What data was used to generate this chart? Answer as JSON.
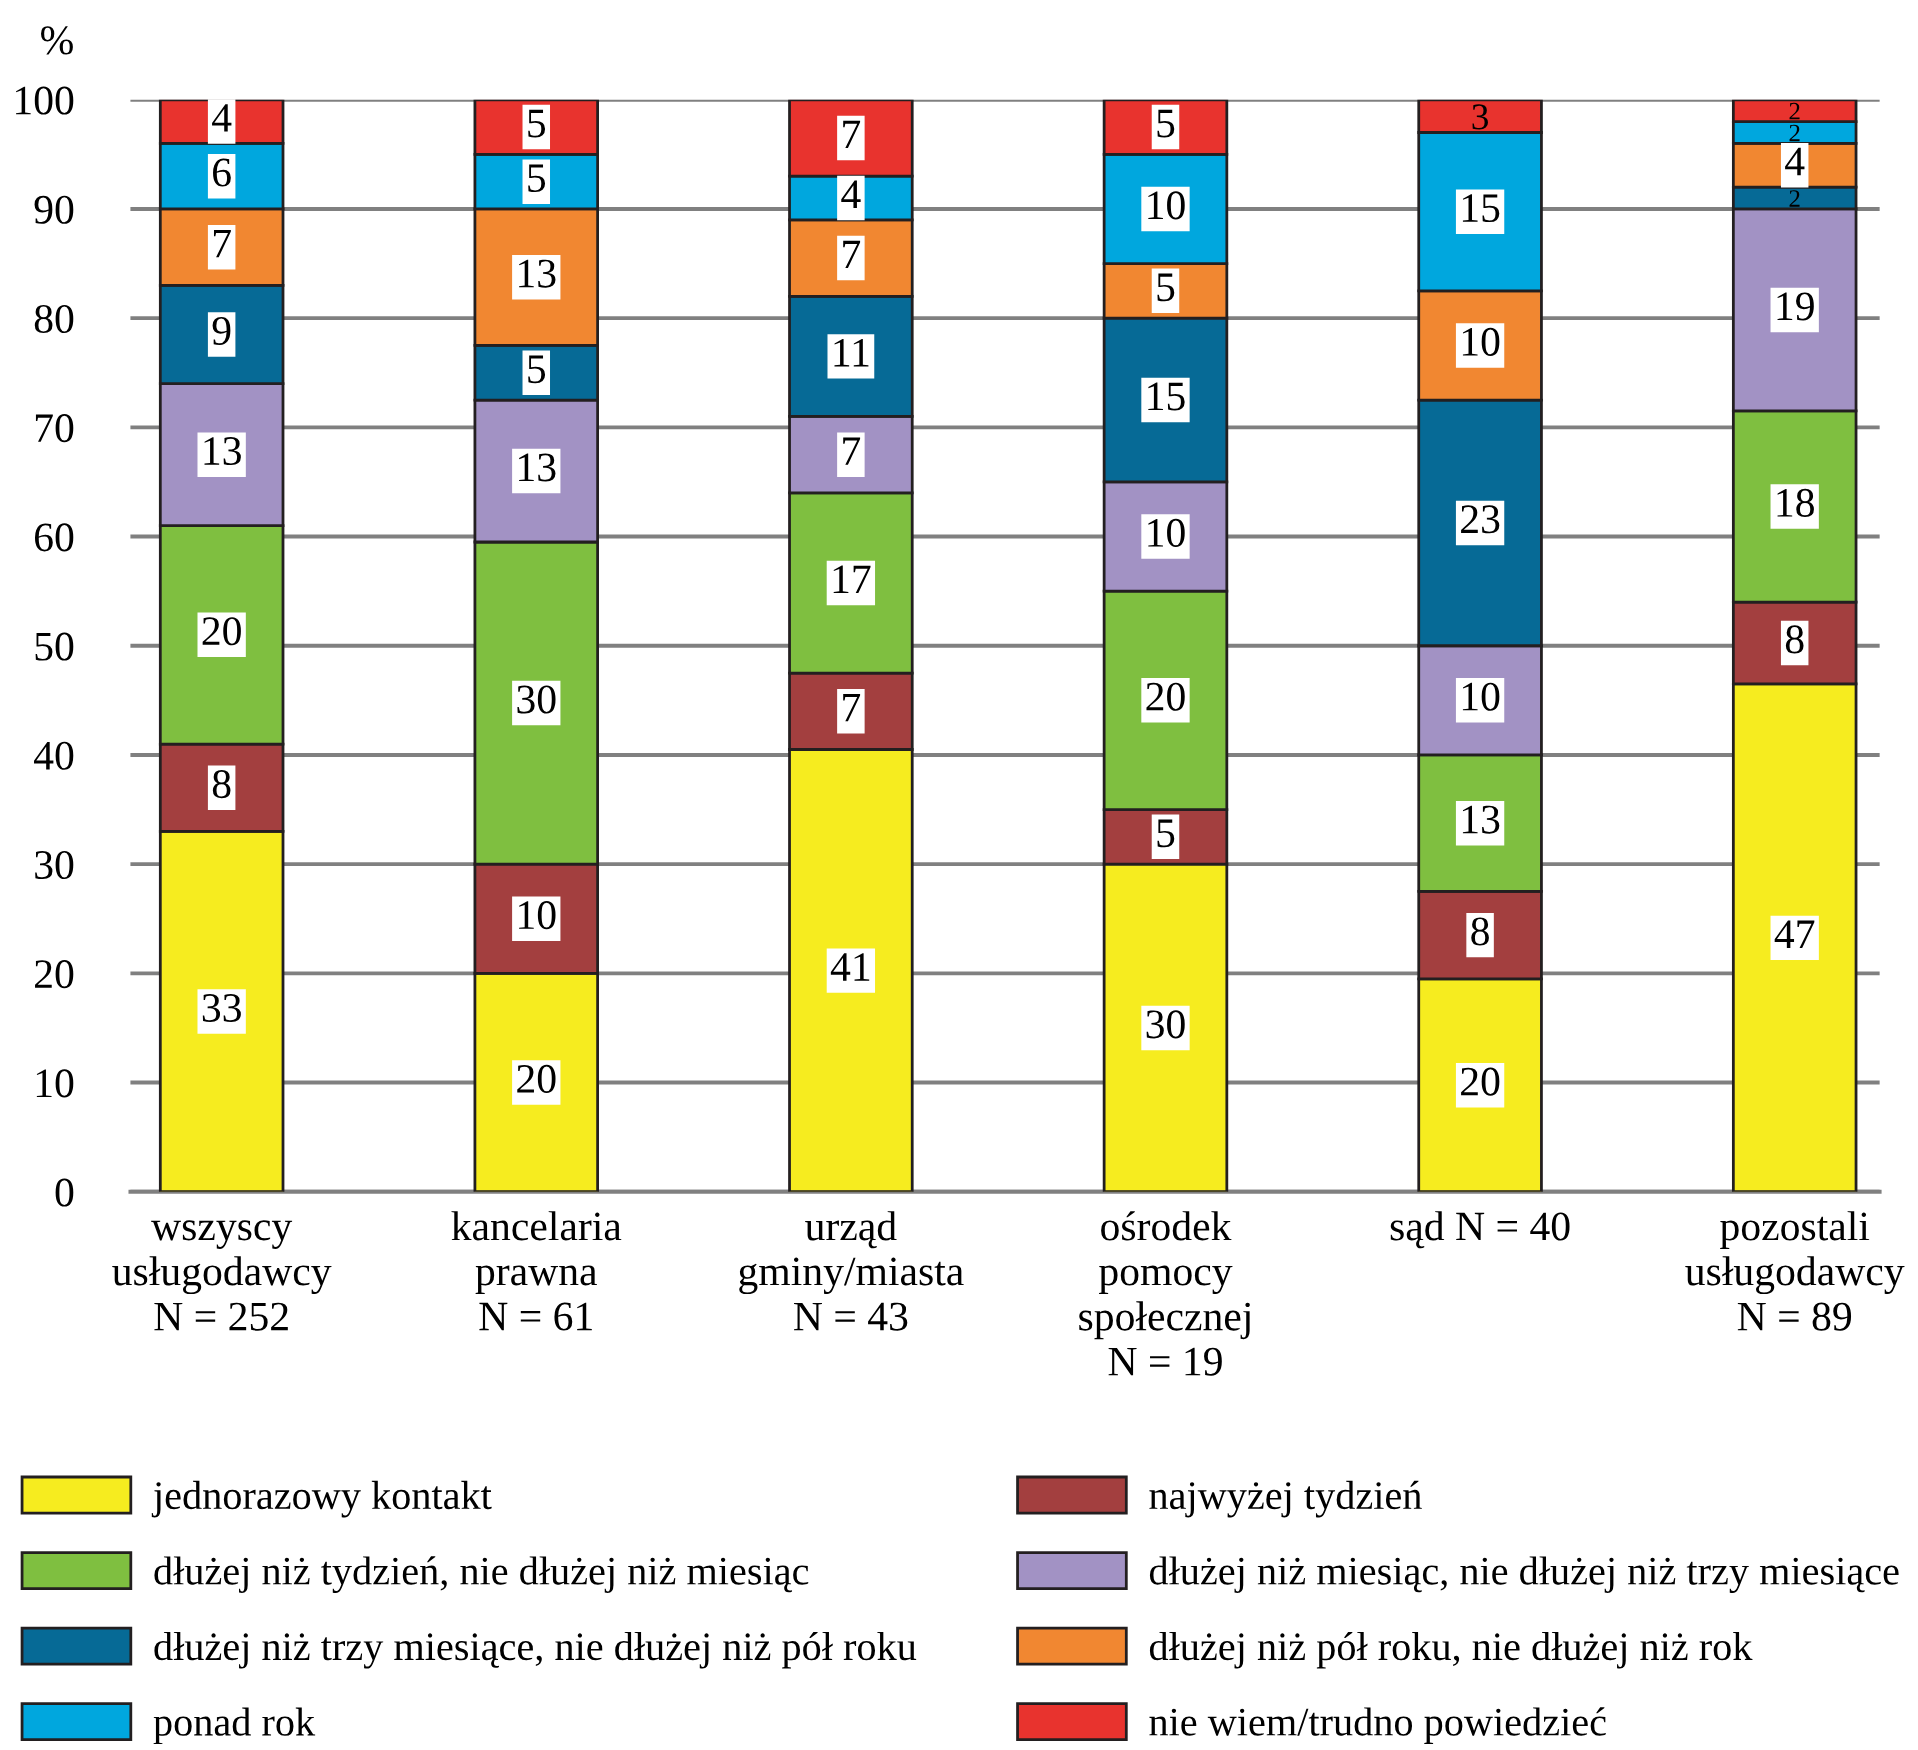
{
  "chart_data": {
    "type": "bar",
    "stacked": true,
    "ylabel": "%",
    "categories": [
      "wszyscy\nusługodawcy\nN = 252",
      "kancelaria\nprawna\nN = 61",
      "urząd\ngminy/miasta\nN = 43",
      "ośrodek\npomocy\nspołecznej\nN = 19",
      "sąd N = 40",
      "pozostali\nusługodawcy\nN = 89"
    ],
    "series": [
      {
        "name": "jednorazowy kontakt",
        "color": "#f6ec1f",
        "values": [
          33,
          20,
          40.5,
          30,
          19.5,
          46.5
        ],
        "value_labels": [
          "33",
          "20",
          "41",
          "30",
          "20",
          "47"
        ]
      },
      {
        "name": "najwyżej tydzień",
        "color": "#a33f3f",
        "values": [
          8,
          10,
          7,
          5,
          8,
          7.5
        ],
        "value_labels": [
          "8",
          "10",
          "7",
          "5",
          "8",
          "8"
        ]
      },
      {
        "name": "dłużej niż tydzień, nie dłużej niż miesiąc",
        "color": "#7fbf40",
        "values": [
          20,
          29.5,
          16.5,
          20,
          12.5,
          17.5
        ],
        "value_labels": [
          "20",
          "30",
          "17",
          "20",
          "13",
          "18"
        ]
      },
      {
        "name": "dłużej niż miesiąc, nie dłużej niż trzy miesiące",
        "color": "#a292c4",
        "values": [
          13,
          13,
          7,
          10,
          10,
          18.5
        ],
        "value_labels": [
          "13",
          "13",
          "7",
          "10",
          "10",
          "19"
        ]
      },
      {
        "name": "dłużej niż trzy miesiące, nie dłużej niż pół roku",
        "color": "#066a96",
        "values": [
          9,
          5,
          11,
          15,
          22.5,
          2
        ],
        "value_labels": [
          "9",
          "5",
          "11",
          "15",
          "23",
          "2"
        ]
      },
      {
        "name": "dłużej niż pół roku, nie dłużej niż rok",
        "color": "#f18731",
        "values": [
          7,
          12.5,
          7,
          5,
          10,
          4
        ],
        "value_labels": [
          "7",
          "13",
          "7",
          "5",
          "10",
          "4"
        ]
      },
      {
        "name": "ponad rok",
        "color": "#00a7de",
        "values": [
          6,
          5,
          4,
          10,
          14.5,
          2
        ],
        "value_labels": [
          "6",
          "5",
          "4",
          "10",
          "15",
          "2"
        ]
      },
      {
        "name": "nie wiem/trudno powiedzieć",
        "color": "#e8332e",
        "values": [
          4,
          5,
          7,
          5,
          3,
          2
        ],
        "value_labels": [
          "4",
          "5",
          "7",
          "5",
          "3",
          "2"
        ]
      }
    ],
    "ylim": [
      0,
      100
    ],
    "yticks": [
      0,
      10,
      20,
      30,
      40,
      50,
      60,
      70,
      80,
      90,
      100
    ],
    "grid": "y",
    "legend": "bottom"
  }
}
